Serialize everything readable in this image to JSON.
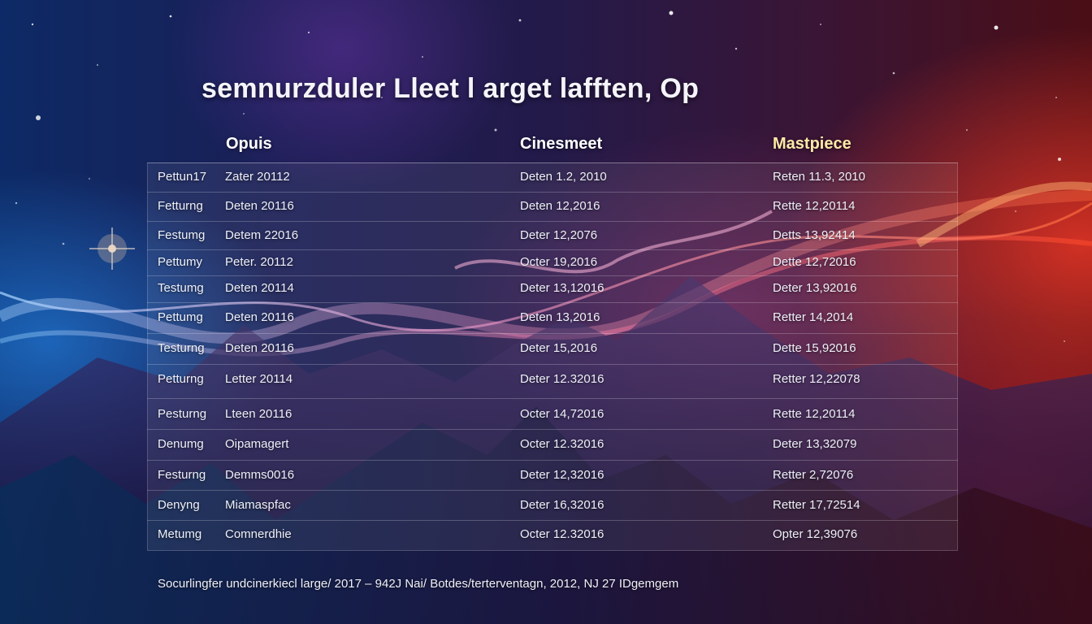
{
  "title": "semnurzduler Lleet l arget lafften, Op",
  "columns": [
    {
      "label": "Opuis",
      "color": "#ffffff"
    },
    {
      "label": "Cinesmeet",
      "color": "#ffffff"
    },
    {
      "label": "Mastpiece",
      "color": "#ffe9a8"
    }
  ],
  "rows": [
    {
      "label": "Pettun17",
      "opus": "Zater 20112",
      "cinesmeet": "Deten 1.2, 2010",
      "masterpiece": "Reten 11.3, 2010"
    },
    {
      "label": "Fetturng",
      "opus": "Deten 20116",
      "cinesmeet": "Deten 12,2016",
      "masterpiece": "Rette 12,20114"
    },
    {
      "label": "Festumg",
      "opus": "Detem 22016",
      "cinesmeet": "Deter 12,2076",
      "masterpiece": "Detts 13,92414"
    },
    {
      "label": "Pettumy",
      "opus": "Peter. 20112",
      "cinesmeet": "Octer 19,2016",
      "masterpiece": "Dette 12,72016"
    },
    {
      "label": "Testumg",
      "opus": "Deten 20114",
      "cinesmeet": "Deter 13,12016",
      "masterpiece": "Deter 13,92016"
    },
    {
      "label": "Pettumg",
      "opus": "Deten 20116",
      "cinesmeet": "Deten 13,2016",
      "masterpiece": "Retter 14,2014"
    },
    {
      "label": "Testurng",
      "opus": "Deten 20116",
      "cinesmeet": "Deter 15,2016",
      "masterpiece": "Dette 15,92016"
    },
    {
      "label": "Petturng",
      "opus": "Letter 20114",
      "cinesmeet": "Deter 12.32016",
      "masterpiece": "Retter 12,22078"
    },
    {
      "label": "Pesturng",
      "opus": "Lteen 20116",
      "cinesmeet": "Octer 14,72016",
      "masterpiece": "Rette 12,20114"
    },
    {
      "label": "Denumg",
      "opus": "Oipamagert",
      "cinesmeet": "Octer 12.32016",
      "masterpiece": "Deter 13,32079"
    },
    {
      "label": "Festurng",
      "opus": "Demms0016",
      "cinesmeet": "Deter 12,32016",
      "masterpiece": "Retter 2,72076"
    },
    {
      "label": "Denyng",
      "opus": "Miamaspfac",
      "cinesmeet": "Deter 16,32016",
      "masterpiece": "Retter 17,72514"
    },
    {
      "label": "Metumg",
      "opus": "Comnerdhie",
      "cinesmeet": "Octer 12.32016",
      "masterpiece": "Opter 12,39076"
    }
  ],
  "footer": "Socurlingfer undcinerkiecl large/ 2017 – 942J Nai/ Botdes/terterventagn, 2012, NJ 27 IDgemgem"
}
